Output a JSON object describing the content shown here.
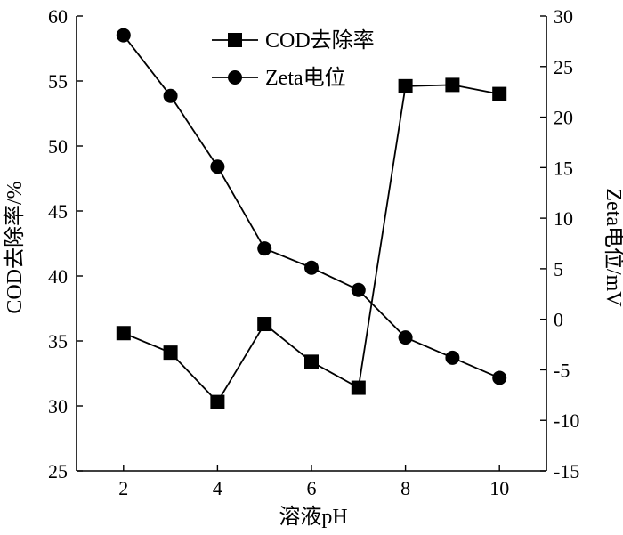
{
  "chart_data": {
    "type": "line",
    "xlabel": "溶液pH",
    "ylabel_left": "COD去除率/%",
    "ylabel_right": "Zeta电位/mV",
    "x_ticks": [
      2,
      4,
      6,
      8,
      10
    ],
    "y_left_ticks": [
      25,
      30,
      35,
      40,
      45,
      50,
      55,
      60
    ],
    "y_right_ticks": [
      -15,
      -10,
      -5,
      0,
      5,
      10,
      15,
      20,
      25,
      30
    ],
    "xlim": [
      1,
      11
    ],
    "ylim_left": [
      25,
      60
    ],
    "ylim_right": [
      -15,
      30
    ],
    "legend_position": "top-center",
    "series": [
      {
        "name": "COD去除率",
        "axis": "left",
        "marker": "square",
        "x": [
          2,
          3,
          4,
          5,
          6,
          7,
          8,
          9,
          10
        ],
        "y": [
          35.6,
          34.1,
          30.3,
          36.3,
          33.4,
          31.4,
          54.6,
          54.7,
          54.0
        ]
      },
      {
        "name": "Zeta电位",
        "axis": "right",
        "marker": "circle",
        "x": [
          2,
          3,
          4,
          5,
          6,
          7,
          8,
          9,
          10
        ],
        "y": [
          28.1,
          22.1,
          15.1,
          7.0,
          5.1,
          2.9,
          -1.8,
          -3.8,
          -5.8
        ]
      }
    ]
  }
}
